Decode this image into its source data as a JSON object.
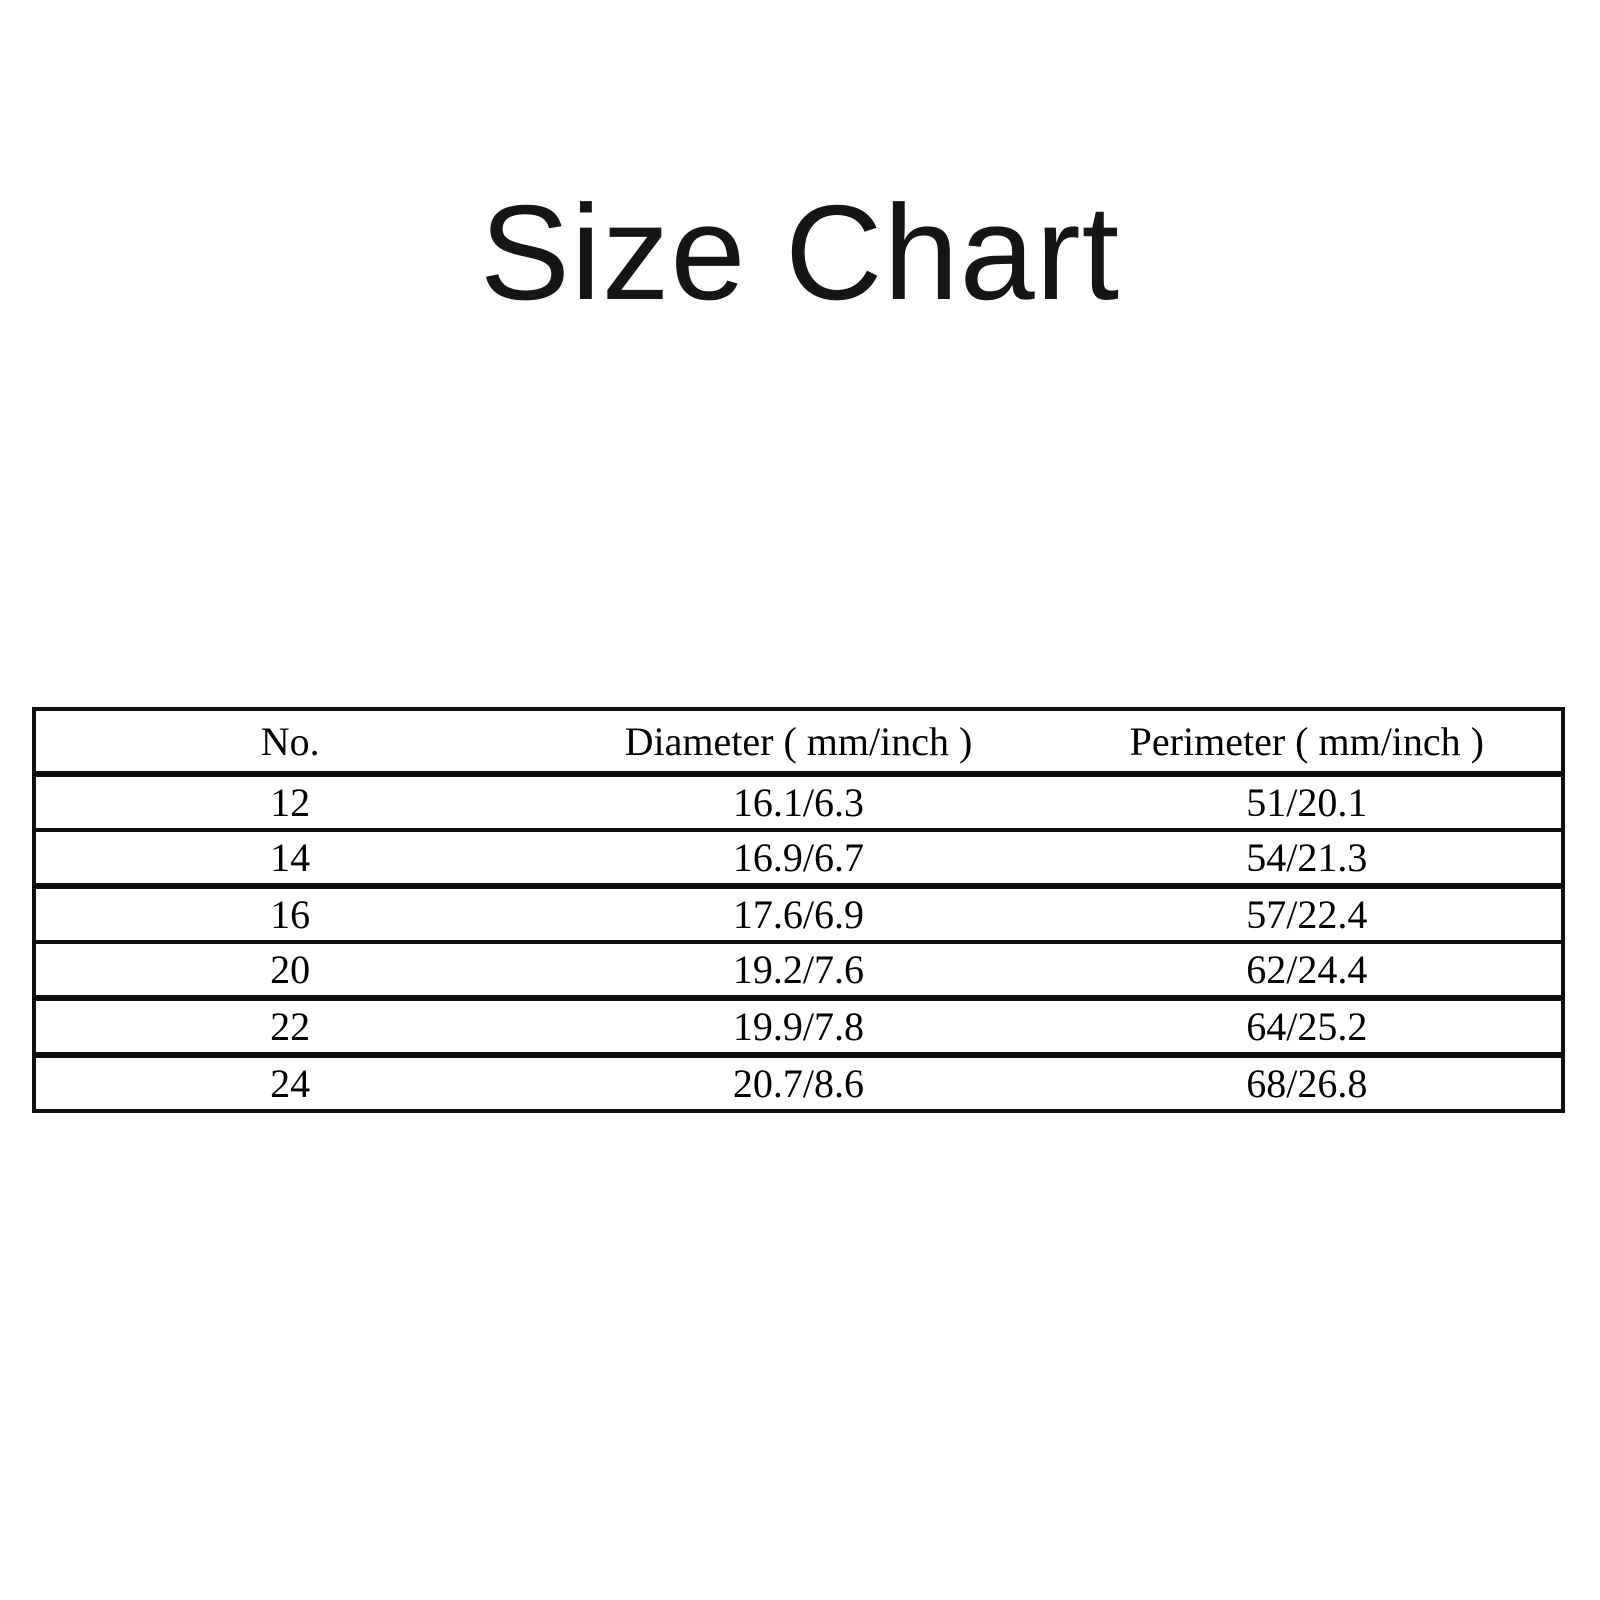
{
  "page": {
    "background": "#ffffff",
    "text_color": "#000000",
    "border_color": "#0f0f0f"
  },
  "chart_data": {
    "type": "table",
    "title": "Size Chart",
    "columns": [
      "No.",
      "Diameter ( mm/inch )",
      "Perimeter ( mm/inch )"
    ],
    "rows": [
      [
        "12",
        "16.1/6.3",
        "51/20.1"
      ],
      [
        "14",
        "16.9/6.7",
        "54/21.3"
      ],
      [
        "16",
        "17.6/6.9",
        "57/22.4"
      ],
      [
        "20",
        "19.2/7.6",
        "62/24.4"
      ],
      [
        "22",
        "19.9/7.8",
        "64/25.2"
      ],
      [
        "24",
        "20.7/8.6",
        "68/26.8"
      ]
    ]
  }
}
